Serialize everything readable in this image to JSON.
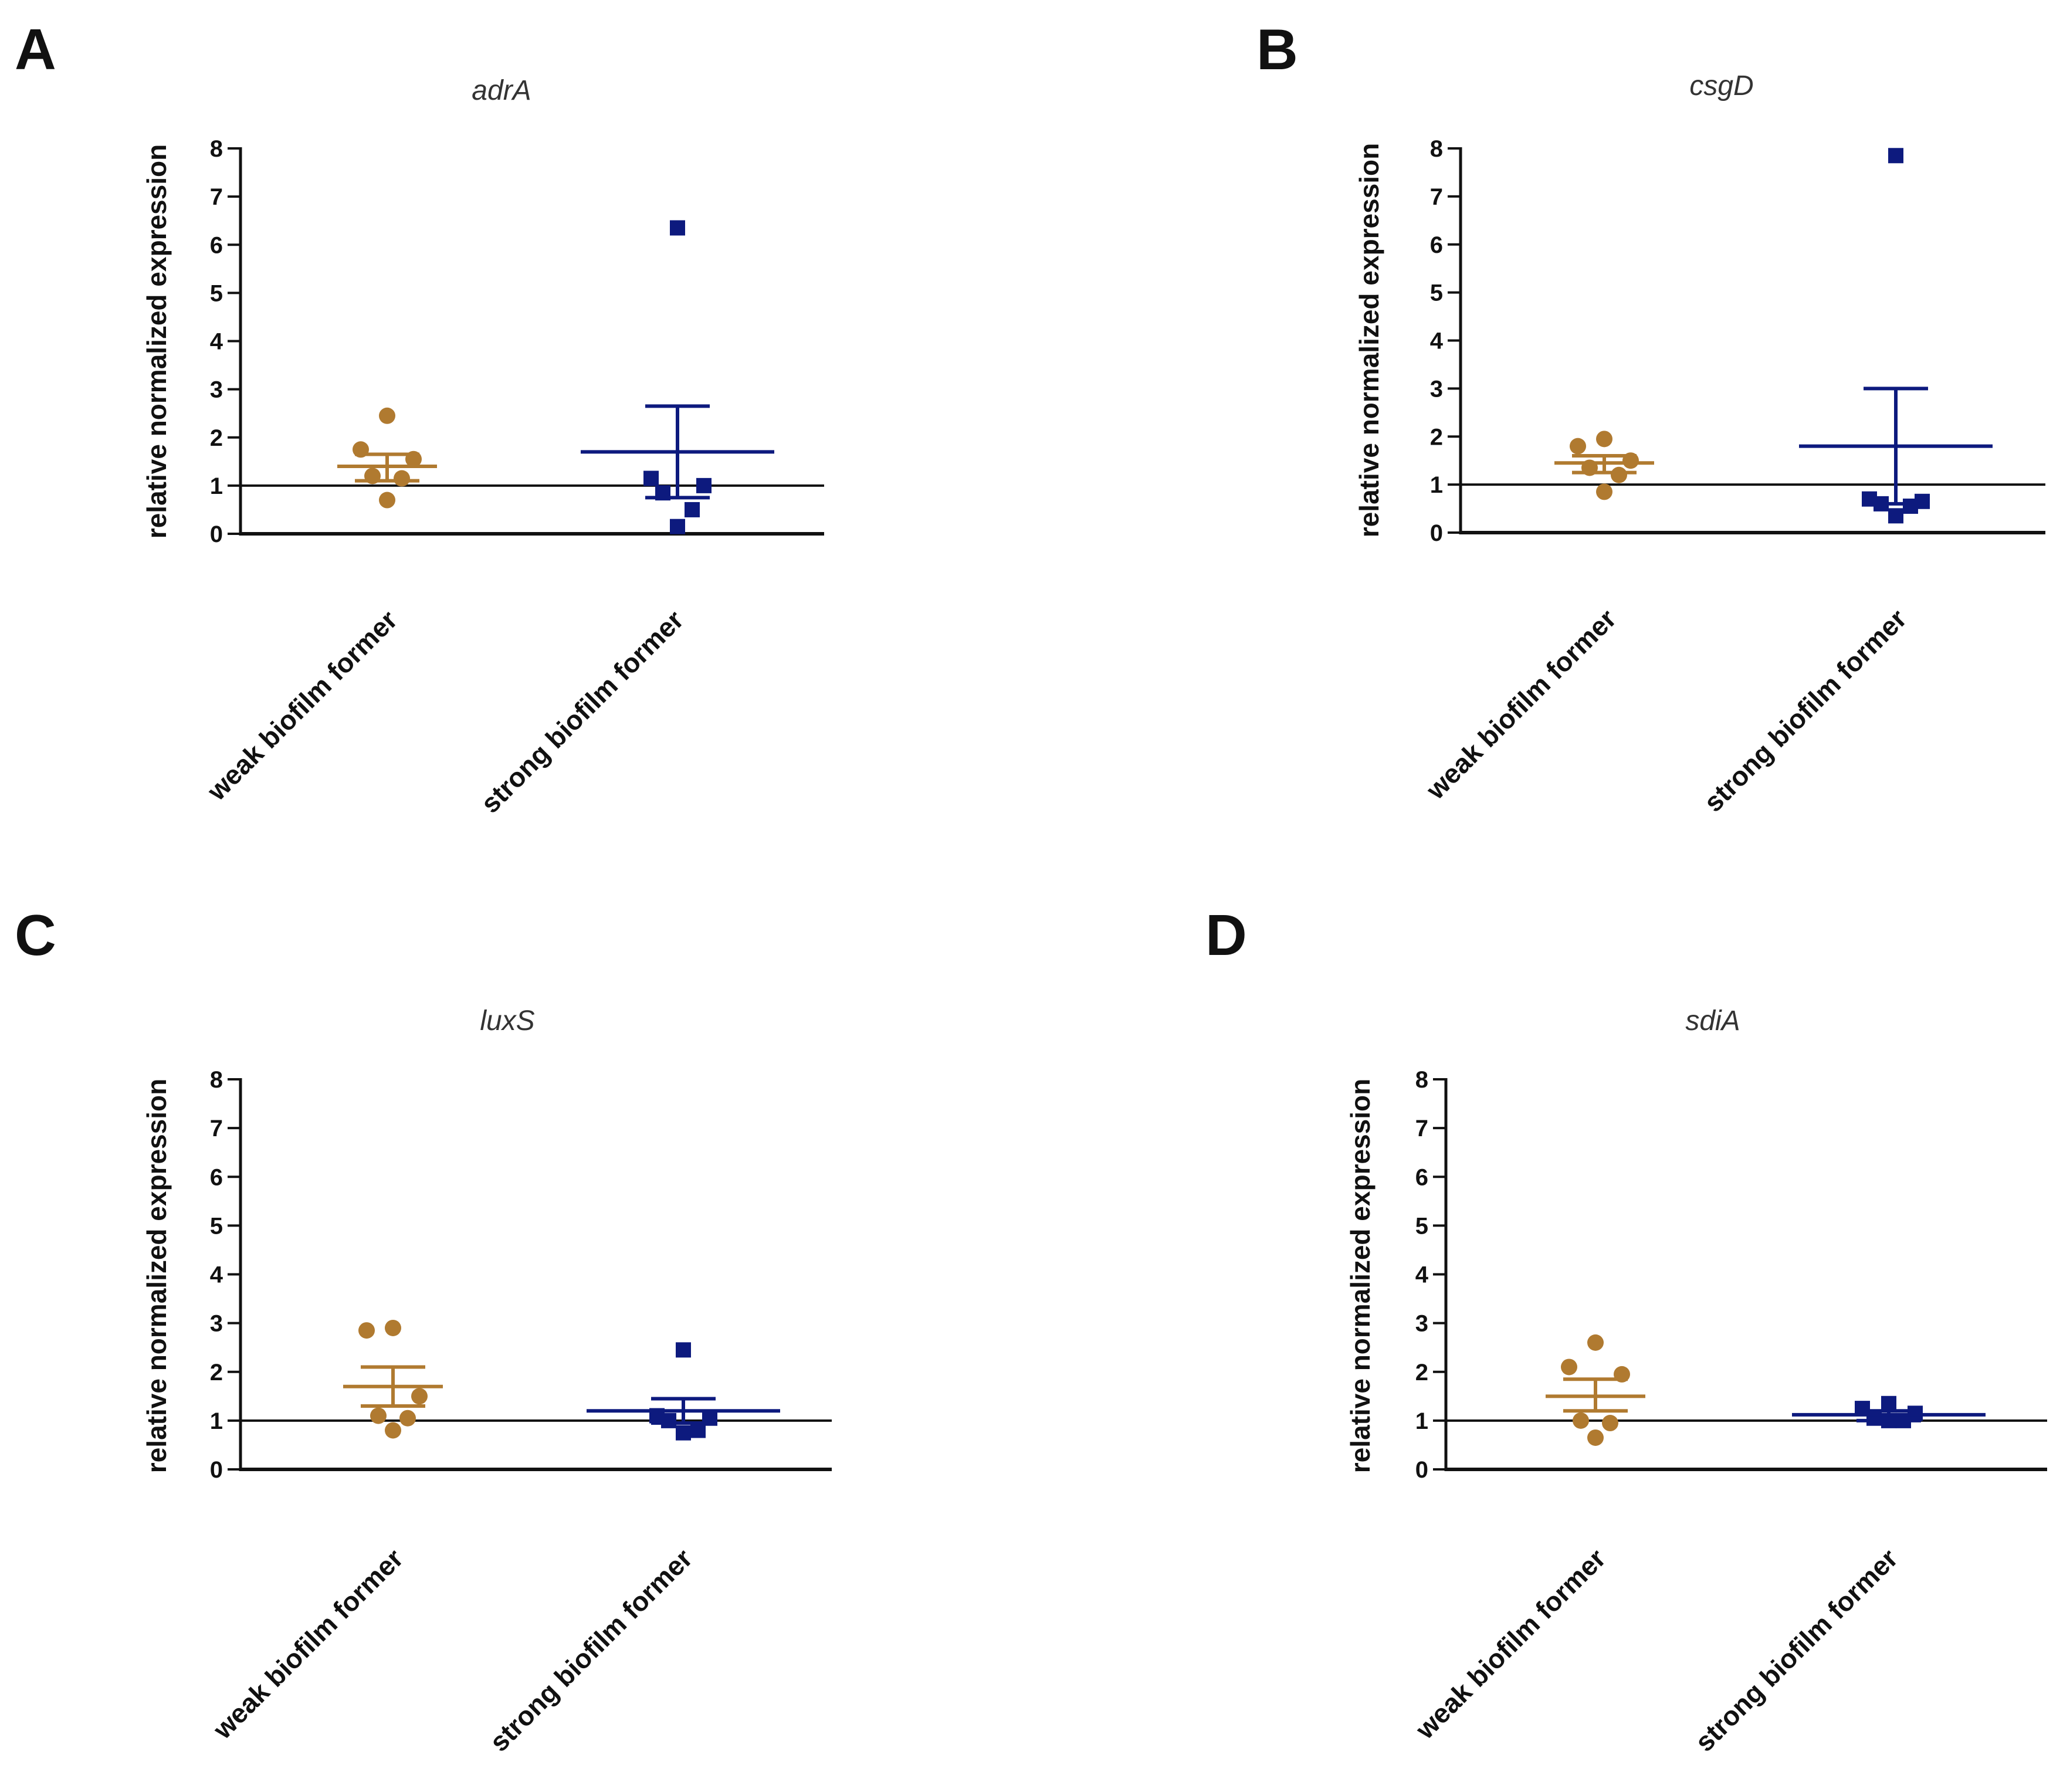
{
  "figure": {
    "group_colors": [
      "#b07a30",
      "#0d1a7e"
    ],
    "axis_color": "#111111",
    "reference_line_value": 1
  },
  "chart_data": [
    {
      "panel": "A",
      "type": "scatter",
      "title": "adrA",
      "ylabel": "relative normalized expression",
      "xlabel": "",
      "ylim": [
        0,
        8
      ],
      "yticks": [
        0,
        1,
        2,
        3,
        4,
        5,
        6,
        7,
        8
      ],
      "categories": [
        "weak biofilm former",
        "strong biofilm former"
      ],
      "groups": [
        {
          "name": "weak biofilm former",
          "marker": "circle",
          "points": [
            2.45,
            1.75,
            1.55,
            1.2,
            1.15,
            0.7
          ],
          "mean": 1.4,
          "sem_low": 1.1,
          "sem_high": 1.65
        },
        {
          "name": "strong biofilm former",
          "marker": "square",
          "points": [
            6.35,
            1.15,
            1.0,
            0.85,
            0.5,
            0.15
          ],
          "mean": 1.7,
          "sem_low": 0.75,
          "sem_high": 2.65
        }
      ]
    },
    {
      "panel": "B",
      "type": "scatter",
      "title": "csgD",
      "ylabel": "relative normalized expression",
      "xlabel": "",
      "ylim": [
        0,
        8
      ],
      "yticks": [
        0,
        1,
        2,
        3,
        4,
        5,
        6,
        7,
        8
      ],
      "categories": [
        "weak biofilm former",
        "strong biofilm former"
      ],
      "groups": [
        {
          "name": "weak biofilm former",
          "marker": "circle",
          "points": [
            1.95,
            1.8,
            1.5,
            1.35,
            1.2,
            0.85
          ],
          "mean": 1.45,
          "sem_low": 1.25,
          "sem_high": 1.6
        },
        {
          "name": "strong biofilm former",
          "marker": "square",
          "points": [
            7.85,
            0.7,
            0.65,
            0.6,
            0.55,
            0.35
          ],
          "mean": 1.8,
          "sem_low": 0.6,
          "sem_high": 3.0
        }
      ]
    },
    {
      "panel": "C",
      "type": "scatter",
      "title": "luxS",
      "ylabel": "relative normalized expression",
      "xlabel": "",
      "ylim": [
        0,
        8
      ],
      "yticks": [
        0,
        1,
        2,
        3,
        4,
        5,
        6,
        7,
        8
      ],
      "categories": [
        "weak biofilm former",
        "strong biofilm former"
      ],
      "groups": [
        {
          "name": "weak biofilm former",
          "marker": "circle",
          "points": [
            2.9,
            2.85,
            1.5,
            1.1,
            1.05,
            0.8
          ],
          "mean": 1.7,
          "sem_low": 1.3,
          "sem_high": 2.1
        },
        {
          "name": "strong biofilm former",
          "marker": "square",
          "points": [
            2.45,
            1.1,
            1.05,
            1.0,
            0.8,
            0.75
          ],
          "mean": 1.2,
          "sem_low": 0.95,
          "sem_high": 1.45
        }
      ]
    },
    {
      "panel": "D",
      "type": "scatter",
      "title": "sdiA",
      "ylabel": "relative normalized expression",
      "xlabel": "",
      "ylim": [
        0,
        8
      ],
      "yticks": [
        0,
        1,
        2,
        3,
        4,
        5,
        6,
        7,
        8
      ],
      "categories": [
        "weak biofilm former",
        "strong biofilm former"
      ],
      "groups": [
        {
          "name": "weak biofilm former",
          "marker": "circle",
          "points": [
            2.6,
            2.1,
            1.95,
            1.0,
            0.95,
            0.65
          ],
          "mean": 1.5,
          "sem_low": 1.2,
          "sem_high": 1.85
        },
        {
          "name": "strong biofilm former",
          "marker": "square",
          "points": [
            1.35,
            1.25,
            1.15,
            1.05,
            1.0,
            1.0
          ],
          "mean": 1.12,
          "sem_low": 1.0,
          "sem_high": 1.2
        }
      ]
    }
  ]
}
